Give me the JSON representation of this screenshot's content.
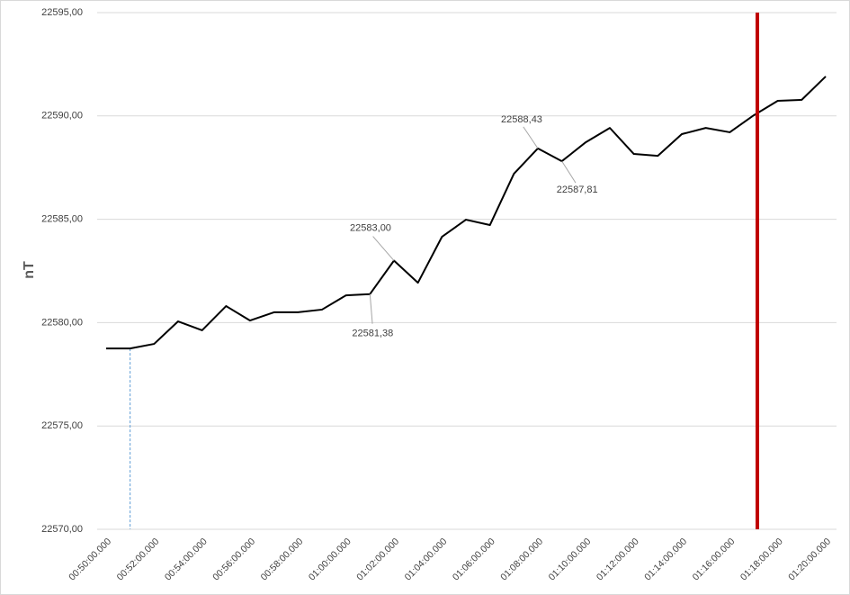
{
  "chart_data": {
    "type": "line",
    "y_axis_title": "nT",
    "categories": [
      "00:50:00.000",
      null,
      "00:52:00.000",
      null,
      "00:54:00.000",
      null,
      "00:56:00.000",
      null,
      "00:58:00.000",
      null,
      "01:00:00.000",
      null,
      "01:02:00.000",
      null,
      "01:04:00.000",
      null,
      "01:06:00.000",
      null,
      "01:08:00.000",
      null,
      "01:10:00.000",
      null,
      "01:12:00.000",
      null,
      "01:14:00.000",
      null,
      "01:16:00.000",
      null,
      "01:18:00.000",
      null,
      "01:20:00.000"
    ],
    "series": [
      {
        "color": "#000000",
        "values": [
          22578.75,
          22578.75,
          22578.97,
          22580.06,
          22579.63,
          22580.8,
          22580.1,
          22580.5,
          22580.5,
          22580.63,
          22581.32,
          22581.38,
          22583.0,
          22581.93,
          22584.15,
          22584.98,
          22584.72,
          22587.2,
          22588.43,
          22587.81,
          22588.73,
          22589.42,
          22588.16,
          22588.07,
          22589.12,
          22589.42,
          22589.21,
          22590.03,
          22590.73,
          22590.78,
          22591.91
        ],
        "value_labels": [
          null,
          null,
          null,
          null,
          null,
          null,
          null,
          null,
          null,
          null,
          null,
          "22581,38",
          "22583,00",
          null,
          null,
          null,
          null,
          null,
          "22588,43",
          "22587,81",
          null,
          null,
          null,
          null,
          null,
          null,
          null,
          null,
          null,
          null,
          null
        ]
      }
    ],
    "ylim": [
      22570,
      22595
    ],
    "yticks": [
      {
        "value": 22570,
        "label": "22570,00"
      },
      {
        "value": 22575,
        "label": "22575,00"
      },
      {
        "value": 22580,
        "label": "22580,00"
      },
      {
        "value": 22585,
        "label": "22585,00"
      },
      {
        "value": 22590,
        "label": "22590,00"
      },
      {
        "value": 22595,
        "label": "22595,00"
      }
    ],
    "grid": true,
    "drop_line_index": 1,
    "drop_line_color": "#5b9bd5",
    "marker_line_index": 27,
    "marker_line_color": "#c00000"
  }
}
